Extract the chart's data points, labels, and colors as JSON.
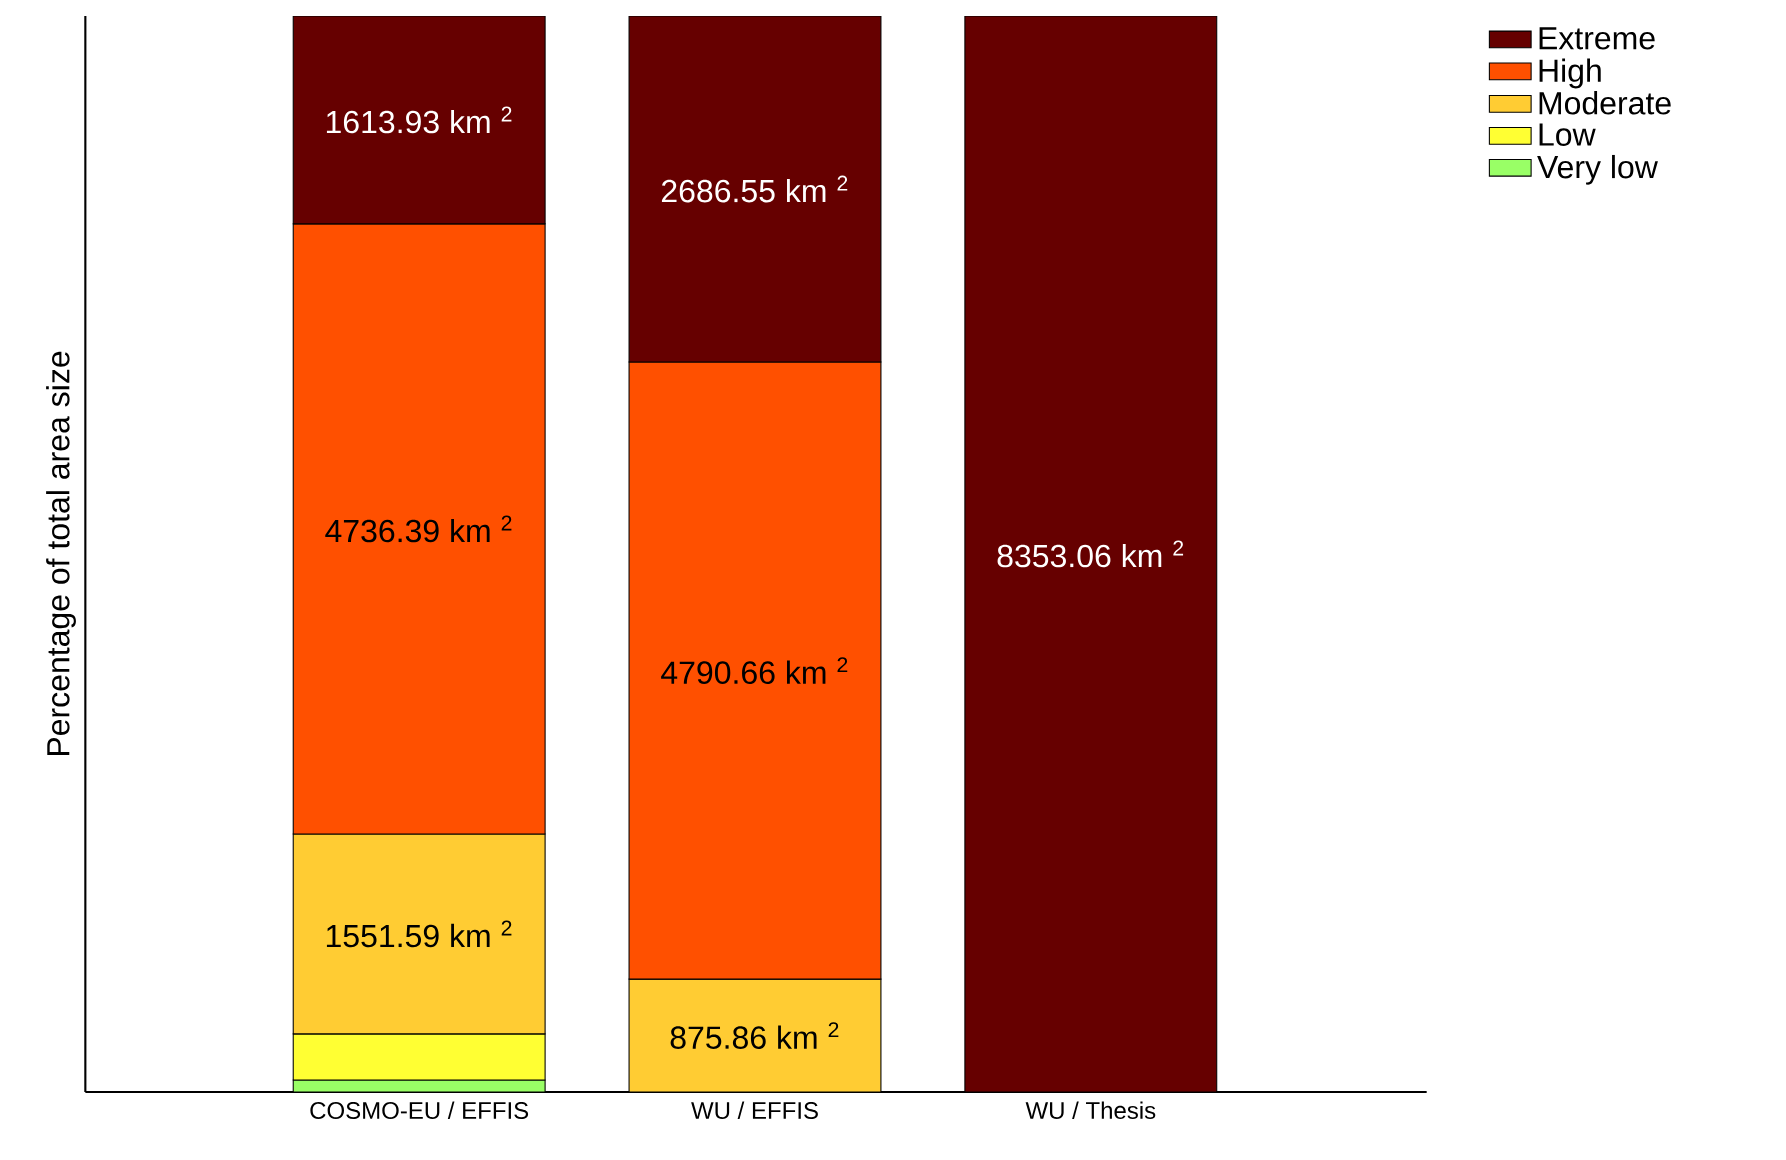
{
  "chart_data": {
    "type": "bar",
    "stacked": true,
    "ylabel": "Percentage of total area size",
    "categories": [
      "COSMO-EU / EFFIS",
      "WU / EFFIS",
      "WU / Thesis"
    ],
    "ylim": [
      0,
      8353.1
    ],
    "legend": "top right",
    "series": [
      {
        "name": "Very low",
        "color": "#99ff66",
        "values": [
          93,
          null,
          null
        ],
        "value_labels": [
          null,
          null,
          null
        ]
      },
      {
        "name": "Low",
        "color": "#ffff33",
        "values": [
          358,
          null,
          null
        ],
        "value_labels": [
          null,
          null,
          null
        ]
      },
      {
        "name": "Moderate",
        "color": "#ffcc33",
        "values": [
          1551.59,
          875.86,
          null
        ],
        "value_labels": [
          "1551.59 km $^{2}$",
          "875.86 km $^{2}$",
          null
        ]
      },
      {
        "name": "High",
        "color": "#ff5000",
        "values": [
          4736.39,
          4790.66,
          null
        ],
        "value_labels": [
          "4736.39 km $^{2}$",
          "4790.66 km $^{2}$",
          null
        ]
      },
      {
        "name": "Extreme",
        "color": "#660000",
        "values": [
          1613.93,
          2686.55,
          8353.06
        ],
        "value_labels": [
          "1613.93 km $^{2}$",
          "2686.55 km $^{2}$",
          "8353.06 km $^{2}$"
        ]
      }
    ]
  }
}
